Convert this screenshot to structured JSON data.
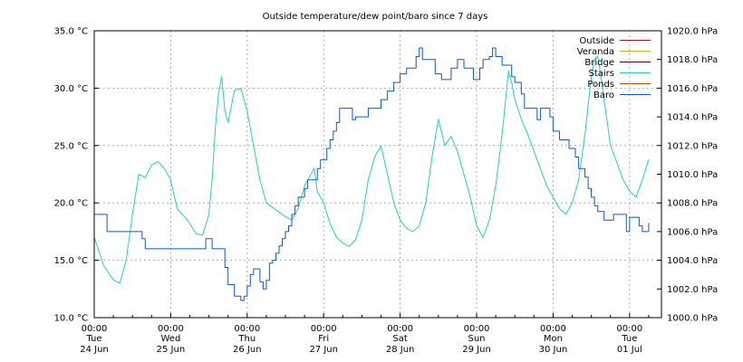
{
  "chart_data": {
    "type": "line",
    "title": "Outside temperature/dew point/baro since 7 days",
    "x_axis": {
      "range": [
        "2025-06-24 00:00",
        "2025-07-01 10:00"
      ],
      "ticks": [
        {
          "time": "00:00",
          "day": "Tue",
          "date": "24 Jun"
        },
        {
          "time": "00:00",
          "day": "Wed",
          "date": "25 Jun"
        },
        {
          "time": "00:00",
          "day": "Thu",
          "date": "26 Jun"
        },
        {
          "time": "00:00",
          "day": "Fri",
          "date": "27 Jun"
        },
        {
          "time": "00:00",
          "day": "Sat",
          "date": "28 Jun"
        },
        {
          "time": "00:00",
          "day": "Sun",
          "date": "29 Jun"
        },
        {
          "time": "00:00",
          "day": "Mon",
          "date": "30 Jun"
        },
        {
          "time": "00:00",
          "day": "Tue",
          "date": "01 Jul"
        }
      ]
    },
    "y_left": {
      "unit": "°C",
      "range": [
        10,
        35
      ],
      "ticks": [
        "10.0 °C",
        "15.0 °C",
        "20.0 °C",
        "25.0 °C",
        "30.0 °C",
        "35.0 °C"
      ]
    },
    "y_right": {
      "unit": "hPa",
      "range": [
        1000,
        1020
      ],
      "ticks": [
        "1000.0 hPa",
        "1002.0 hPa",
        "1004.0 hPa",
        "1006.0 hPa",
        "1008.0 hPa",
        "1010.0 hPa",
        "1012.0 hPa",
        "1014.0 hPa",
        "1016.0 hPa",
        "1018.0 hPa",
        "1020.0 hPa"
      ]
    },
    "grid": true,
    "legend_position": "top-right",
    "series": [
      {
        "name": "Outside",
        "color": "#8b1a1a",
        "axis": "left",
        "points": []
      },
      {
        "name": "Veranda",
        "color": "#d4b000",
        "axis": "left",
        "points": []
      },
      {
        "name": "Bridge",
        "color": "#4b0030",
        "axis": "left",
        "points": []
      },
      {
        "name": "Stairs",
        "color": "#20d0c8",
        "axis": "left",
        "points": [
          [
            0,
            17.0
          ],
          [
            3,
            14.5
          ],
          [
            6,
            13.3
          ],
          [
            8,
            13.0
          ],
          [
            10,
            15.0
          ],
          [
            12,
            19.0
          ],
          [
            14,
            22.5
          ],
          [
            16,
            22.2
          ],
          [
            18,
            23.3
          ],
          [
            20,
            23.6
          ],
          [
            22,
            23.0
          ],
          [
            24,
            22.0
          ],
          [
            26,
            19.5
          ],
          [
            28,
            18.9
          ],
          [
            30,
            18.2
          ],
          [
            32,
            17.3
          ],
          [
            34,
            17.2
          ],
          [
            36,
            19.0
          ],
          [
            37,
            22.0
          ],
          [
            38,
            26.5
          ],
          [
            39,
            29.5
          ],
          [
            40,
            31.0
          ],
          [
            41,
            28.0
          ],
          [
            42,
            27.0
          ],
          [
            44,
            29.8
          ],
          [
            46,
            30.0
          ],
          [
            47,
            29.0
          ],
          [
            48,
            28.0
          ],
          [
            50,
            25.0
          ],
          [
            52,
            22.0
          ],
          [
            54,
            20.0
          ],
          [
            56,
            19.6
          ],
          [
            58,
            19.2
          ],
          [
            60,
            18.8
          ],
          [
            62,
            18.5
          ],
          [
            64,
            19.5
          ],
          [
            66,
            21.5
          ],
          [
            68,
            22.5
          ],
          [
            69,
            23.0
          ],
          [
            70,
            21.0
          ],
          [
            72,
            20.0
          ],
          [
            74,
            18.2
          ],
          [
            76,
            17.0
          ],
          [
            78,
            16.5
          ],
          [
            80,
            16.2
          ],
          [
            82,
            16.8
          ],
          [
            84,
            18.5
          ],
          [
            86,
            22.0
          ],
          [
            88,
            24.0
          ],
          [
            90,
            25.0
          ],
          [
            92,
            22.5
          ],
          [
            94,
            20.0
          ],
          [
            96,
            18.5
          ],
          [
            98,
            17.8
          ],
          [
            100,
            17.5
          ],
          [
            102,
            18.0
          ],
          [
            104,
            20.0
          ],
          [
            106,
            24.0
          ],
          [
            108,
            27.3
          ],
          [
            110,
            25.0
          ],
          [
            112,
            25.8
          ],
          [
            114,
            24.5
          ],
          [
            116,
            22.5
          ],
          [
            118,
            20.5
          ],
          [
            120,
            18.0
          ],
          [
            122,
            17.0
          ],
          [
            124,
            18.5
          ],
          [
            126,
            21.5
          ],
          [
            128,
            26.0
          ],
          [
            130,
            31.5
          ],
          [
            131,
            30.5
          ],
          [
            132,
            29.0
          ],
          [
            134,
            27.3
          ],
          [
            136,
            26.0
          ],
          [
            138,
            24.5
          ],
          [
            140,
            23.0
          ],
          [
            142,
            21.5
          ],
          [
            144,
            20.5
          ],
          [
            146,
            19.5
          ],
          [
            148,
            19.0
          ],
          [
            150,
            20.0
          ],
          [
            152,
            22.0
          ],
          [
            154,
            26.0
          ],
          [
            156,
            31.0
          ],
          [
            157,
            32.5
          ],
          [
            158,
            32.8
          ],
          [
            159,
            31.0
          ],
          [
            160,
            29.0
          ],
          [
            161,
            27.0
          ],
          [
            162,
            25.0
          ],
          [
            164,
            23.5
          ],
          [
            166,
            22.0
          ],
          [
            168,
            21.0
          ],
          [
            170,
            20.5
          ],
          [
            172,
            22.0
          ],
          [
            174,
            23.8
          ]
        ]
      },
      {
        "name": "Ponds",
        "color": "#c84a10",
        "axis": "left",
        "points": []
      },
      {
        "name": "Baro",
        "color": "#0a5ac8",
        "axis": "right",
        "points": [
          [
            0,
            1007.2
          ],
          [
            3,
            1007.2
          ],
          [
            4,
            1006.0
          ],
          [
            14,
            1006.0
          ],
          [
            15,
            1005.5
          ],
          [
            16,
            1004.8
          ],
          [
            20,
            1004.8
          ],
          [
            21,
            1004.8
          ],
          [
            24,
            1004.8
          ],
          [
            34,
            1004.8
          ],
          [
            35,
            1005.5
          ],
          [
            36,
            1005.5
          ],
          [
            37,
            1004.8
          ],
          [
            40,
            1004.8
          ],
          [
            41,
            1003.5
          ],
          [
            42,
            1002.3
          ],
          [
            44,
            1001.5
          ],
          [
            46,
            1001.2
          ],
          [
            47,
            1001.5
          ],
          [
            48,
            1002.2
          ],
          [
            49,
            1003.0
          ],
          [
            50,
            1003.4
          ],
          [
            52,
            1002.5
          ],
          [
            53,
            1002.0
          ],
          [
            54,
            1002.6
          ],
          [
            55,
            1003.8
          ],
          [
            56,
            1004.0
          ],
          [
            57,
            1004.5
          ],
          [
            58,
            1005.0
          ],
          [
            59,
            1005.5
          ],
          [
            60,
            1006.0
          ],
          [
            61,
            1006.4
          ],
          [
            62,
            1007.2
          ],
          [
            63,
            1007.8
          ],
          [
            64,
            1008.4
          ],
          [
            65,
            1008.4
          ],
          [
            66,
            1009.0
          ],
          [
            67,
            1009.6
          ],
          [
            68,
            1009.6
          ],
          [
            70,
            1010.4
          ],
          [
            71,
            1011.0
          ],
          [
            72,
            1011.0
          ],
          [
            73,
            1011.8
          ],
          [
            74,
            1012.4
          ],
          [
            75,
            1013.0
          ],
          [
            76,
            1013.6
          ],
          [
            77,
            1014.6
          ],
          [
            80,
            1014.6
          ],
          [
            81,
            1013.8
          ],
          [
            82,
            1014.0
          ],
          [
            84,
            1014.0
          ],
          [
            86,
            1014.6
          ],
          [
            88,
            1014.6
          ],
          [
            90,
            1015.2
          ],
          [
            92,
            1015.8
          ],
          [
            94,
            1016.4
          ],
          [
            96,
            1017.0
          ],
          [
            98,
            1017.4
          ],
          [
            100,
            1017.4
          ],
          [
            101,
            1018.2
          ],
          [
            102,
            1018.8
          ],
          [
            103,
            1018.0
          ],
          [
            104,
            1018.0
          ],
          [
            106,
            1018.0
          ],
          [
            107,
            1017.0
          ],
          [
            108,
            1017.0
          ],
          [
            109,
            1016.6
          ],
          [
            110,
            1016.6
          ],
          [
            112,
            1017.4
          ],
          [
            114,
            1018.0
          ],
          [
            116,
            1017.4
          ],
          [
            118,
            1017.4
          ],
          [
            119,
            1016.6
          ],
          [
            120,
            1016.6
          ],
          [
            121,
            1017.4
          ],
          [
            122,
            1018.0
          ],
          [
            124,
            1018.2
          ],
          [
            125,
            1018.8
          ],
          [
            126,
            1018.2
          ],
          [
            128,
            1017.6
          ],
          [
            130,
            1017.6
          ],
          [
            131,
            1016.8
          ],
          [
            132,
            1016.4
          ],
          [
            134,
            1015.6
          ],
          [
            135,
            1014.6
          ],
          [
            138,
            1014.6
          ],
          [
            139,
            1013.8
          ],
          [
            140,
            1014.6
          ],
          [
            142,
            1014.6
          ],
          [
            143,
            1014.0
          ],
          [
            144,
            1013.0
          ],
          [
            146,
            1012.4
          ],
          [
            148,
            1012.4
          ],
          [
            149,
            1011.8
          ],
          [
            150,
            1011.8
          ],
          [
            151,
            1011.2
          ],
          [
            152,
            1010.4
          ],
          [
            154,
            1009.8
          ],
          [
            155,
            1009.0
          ],
          [
            156,
            1008.4
          ],
          [
            157,
            1007.8
          ],
          [
            158,
            1007.4
          ],
          [
            160,
            1006.8
          ],
          [
            162,
            1006.8
          ],
          [
            163,
            1007.2
          ],
          [
            164,
            1007.2
          ],
          [
            166,
            1007.2
          ],
          [
            167,
            1006.0
          ],
          [
            168,
            1007.0
          ],
          [
            170,
            1007.0
          ],
          [
            171,
            1006.4
          ],
          [
            172,
            1006.0
          ],
          [
            174,
            1006.6
          ]
        ]
      }
    ]
  }
}
